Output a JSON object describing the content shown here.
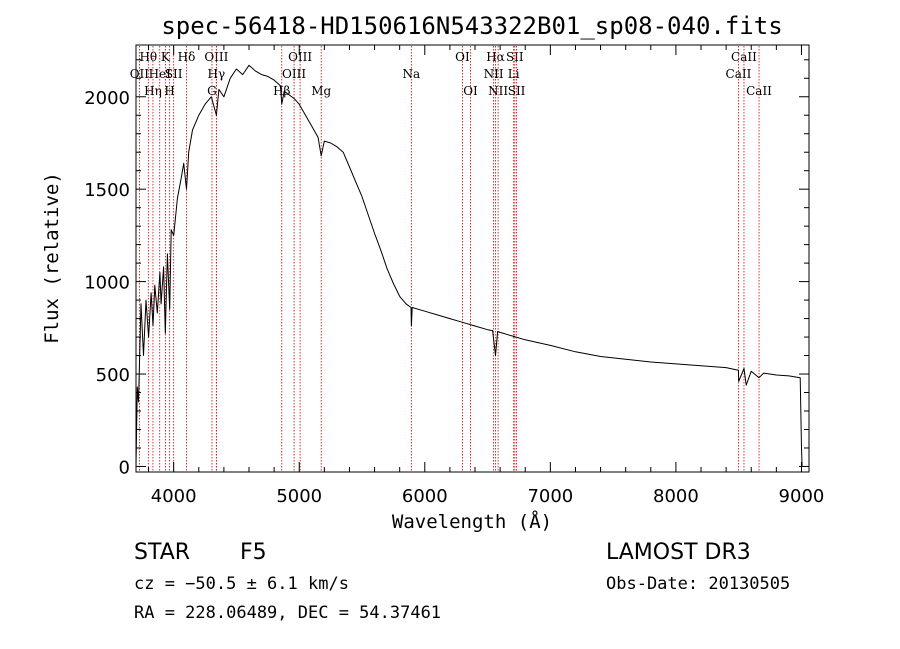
{
  "chart_data": {
    "type": "line",
    "title": "spec-56418-HD150616N543322B01_sp08-040.fits",
    "xlabel": "Wavelength (Å)",
    "ylabel": "Flux (relative)",
    "xlim": [
      3700,
      9060
    ],
    "ylim": [
      -30,
      2280
    ],
    "xticks": [
      4000,
      5000,
      6000,
      7000,
      8000,
      9000
    ],
    "yticks": [
      0,
      500,
      1000,
      1500,
      2000
    ],
    "series": [
      {
        "name": "flux",
        "x": [
          3700,
          3710,
          3720,
          3740,
          3760,
          3780,
          3800,
          3820,
          3835,
          3850,
          3870,
          3890,
          3900,
          3920,
          3933,
          3950,
          3968,
          3980,
          4000,
          4030,
          4060,
          4080,
          4102,
          4120,
          4150,
          4200,
          4250,
          4300,
          4340,
          4360,
          4400,
          4450,
          4500,
          4550,
          4600,
          4650,
          4700,
          4750,
          4800,
          4850,
          4861,
          4880,
          4920,
          4960,
          5000,
          5050,
          5100,
          5150,
          5175,
          5200,
          5250,
          5300,
          5350,
          5400,
          5450,
          5500,
          5550,
          5600,
          5650,
          5700,
          5750,
          5800,
          5850,
          5890,
          5893,
          5900,
          6000,
          6100,
          6200,
          6300,
          6400,
          6500,
          6540,
          6563,
          6580,
          6600,
          6700,
          6800,
          7000,
          7200,
          7400,
          7600,
          7800,
          8000,
          8200,
          8400,
          8498,
          8500,
          8542,
          8560,
          8600,
          8662,
          8700,
          8800,
          8900,
          8990,
          9000,
          9005
        ],
        "y": [
          0,
          430,
          350,
          880,
          600,
          900,
          700,
          940,
          760,
          980,
          830,
          1050,
          880,
          1080,
          720,
          1150,
          850,
          1280,
          1250,
          1450,
          1560,
          1640,
          1500,
          1700,
          1820,
          1900,
          1960,
          2000,
          1900,
          2040,
          2000,
          2100,
          2150,
          2120,
          2170,
          2140,
          2120,
          2110,
          2090,
          2060,
          1960,
          2030,
          2010,
          1990,
          1960,
          1900,
          1840,
          1780,
          1680,
          1760,
          1750,
          1730,
          1700,
          1620,
          1540,
          1460,
          1360,
          1260,
          1170,
          1070,
          990,
          920,
          880,
          860,
          760,
          860,
          840,
          820,
          800,
          780,
          760,
          740,
          735,
          600,
          730,
          725,
          705,
          685,
          655,
          620,
          595,
          580,
          565,
          555,
          545,
          535,
          520,
          460,
          530,
          440,
          515,
          480,
          505,
          495,
          490,
          480,
          100,
          0
        ]
      }
    ],
    "lines": [
      {
        "label": "Hθ",
        "w": 3798,
        "row": 1
      },
      {
        "label": "OII",
        "w": 3727,
        "row": 2
      },
      {
        "label": "Hη",
        "w": 3835,
        "row": 3
      },
      {
        "label": "HeI",
        "w": 3889,
        "row": 2
      },
      {
        "label": "K",
        "w": 3934,
        "row": 1
      },
      {
        "label": "SII",
        "w": 4000,
        "row": 2
      },
      {
        "label": "H",
        "w": 3968,
        "row": 3
      },
      {
        "label": "Hδ",
        "w": 4102,
        "row": 1
      },
      {
        "label": "OIII",
        "w": 4340,
        "row": 1
      },
      {
        "label": "Hγ",
        "w": 4340,
        "row": 2
      },
      {
        "label": "G",
        "w": 4305,
        "row": 3
      },
      {
        "label": "Hβ",
        "w": 4861,
        "row": 3
      },
      {
        "label": "OIII",
        "w": 5007,
        "row": 1
      },
      {
        "label": "OIII",
        "w": 4959,
        "row": 2
      },
      {
        "label": "Mg",
        "w": 5175,
        "row": 3
      },
      {
        "label": "Na",
        "w": 5893,
        "row": 2
      },
      {
        "label": "OI",
        "w": 6300,
        "row": 1
      },
      {
        "label": "OI",
        "w": 6364,
        "row": 3
      },
      {
        "label": "Hα",
        "w": 6563,
        "row": 1
      },
      {
        "label": "NII",
        "w": 6548,
        "row": 2
      },
      {
        "label": "NII",
        "w": 6584,
        "row": 3
      },
      {
        "label": "SII",
        "w": 6717,
        "row": 1
      },
      {
        "label": "Li",
        "w": 6708,
        "row": 2
      },
      {
        "label": "SII",
        "w": 6731,
        "row": 3
      },
      {
        "label": "CaII",
        "w": 8542,
        "row": 1
      },
      {
        "label": "CaII",
        "w": 8498,
        "row": 2
      },
      {
        "label": "CaII",
        "w": 8662,
        "row": 3
      }
    ]
  },
  "info": {
    "object_class": "STAR",
    "subclass": "F5",
    "redshift": "cz = −50.5 ± 6.1 km/s",
    "coords": "RA = 228.06489, DEC =  54.37461",
    "survey": "LAMOST DR3",
    "obs_date": "Obs-Date: 20130505"
  },
  "colors": {
    "line_marker": "#cc0000",
    "spectrum": "#000000"
  }
}
